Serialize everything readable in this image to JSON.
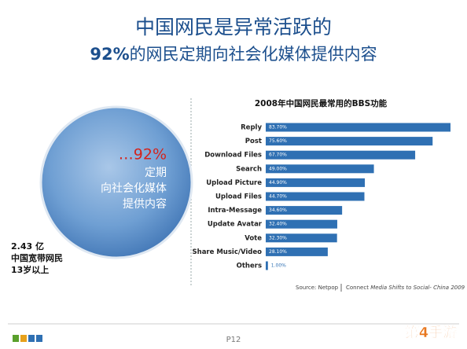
{
  "header": {
    "title": "中国网民是异常活跃的",
    "subtitle_strong": "92%",
    "subtitle": "的网民定期向社会化媒体提供内容"
  },
  "circle": {
    "percent": "…92%",
    "lines": [
      "定期",
      "向社会化媒体",
      "提供内容"
    ]
  },
  "stat": {
    "lines": [
      "2.43 亿",
      "中国宽带网民",
      "13岁以上"
    ]
  },
  "chart_data": {
    "type": "bar",
    "orientation": "horizontal",
    "title": "2008年中国网民最常用的BBS功能",
    "categories": [
      "Reply",
      "Post",
      "Download Files",
      "Search",
      "Upload Picture",
      "Upload Files",
      "Intra-Message",
      "Update Avatar",
      "Vote",
      "Share Music/Video",
      "Others"
    ],
    "values": [
      83.7,
      75.6,
      67.7,
      49.0,
      44.9,
      44.7,
      34.6,
      32.4,
      32.3,
      28.1,
      1.0
    ],
    "value_labels": [
      "83.70%",
      "75.60%",
      "67.70%",
      "49.00%",
      "44.90%",
      "44.70%",
      "34.60%",
      "32.40%",
      "32.30%",
      "28.10%",
      "1.00%"
    ],
    "color": "#2f70b3"
  },
  "source": {
    "left": "Source: Netpop",
    "connect": "Connect",
    "title": "Media Shifts to Social- China 2009"
  },
  "footer": {
    "page": "P12",
    "watermark": "第4手游"
  }
}
